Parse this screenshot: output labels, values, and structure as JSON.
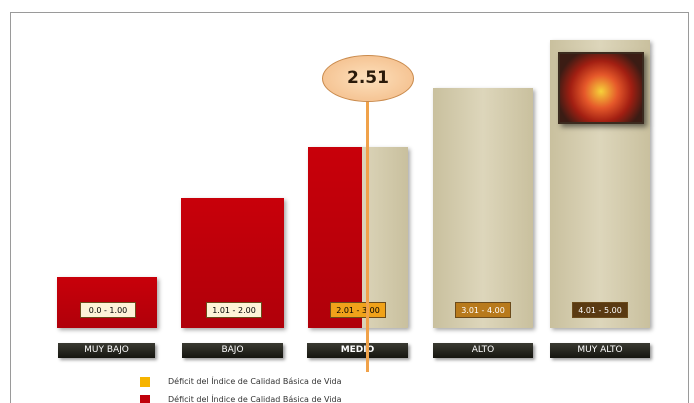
{
  "indicator": {
    "value_label": "2.51"
  },
  "levels": [
    {
      "range": "0.0 - 1.00",
      "name": "MUY BAJO"
    },
    {
      "range": "1.01 - 2.00",
      "name": "BAJO"
    },
    {
      "range": "2.01 - 3.00",
      "name": "MEDIO"
    },
    {
      "range": "3.01 - 4.00",
      "name": "ALTO"
    },
    {
      "range": "4.01 - 5.00",
      "name": "MUY ALTO"
    }
  ],
  "legend": [
    "Déficit del Índice de Calidad Básica de Vida",
    "Déficit del Índice de Calidad Básica de Vida"
  ]
}
